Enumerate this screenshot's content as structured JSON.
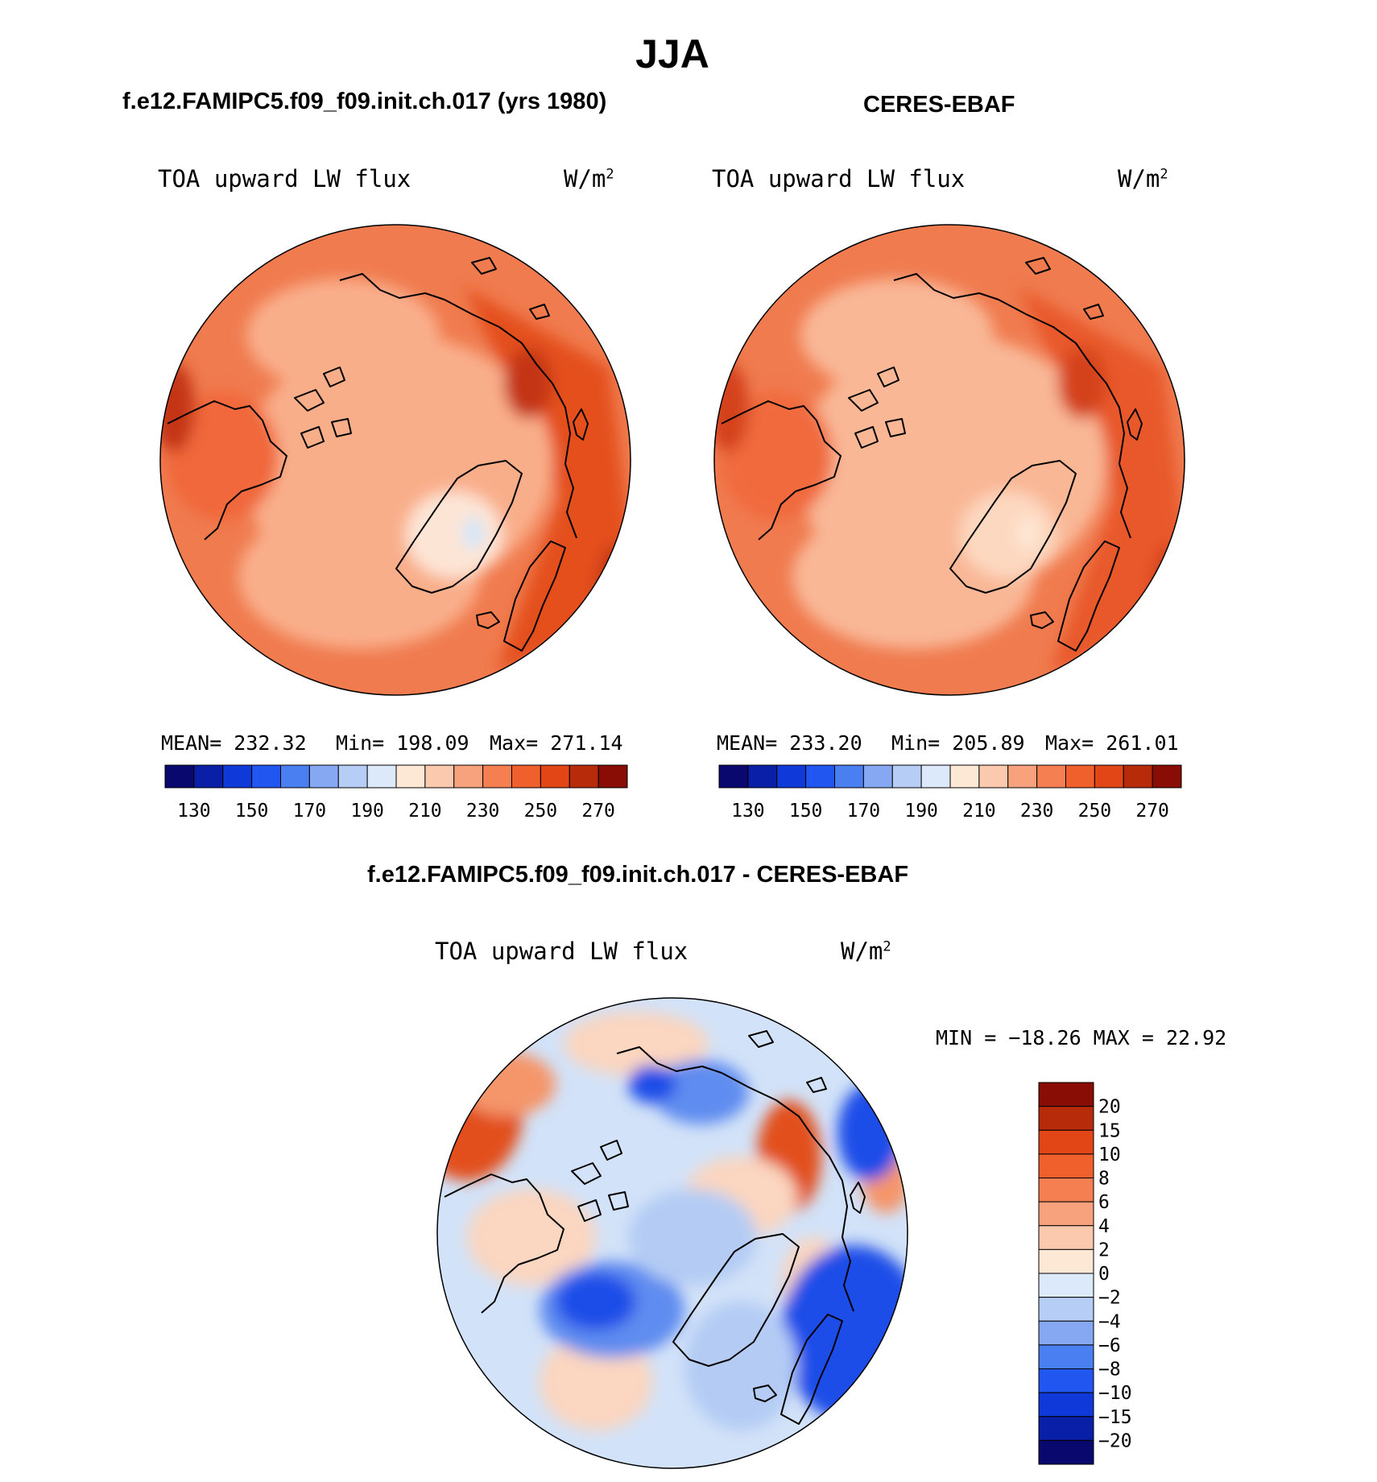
{
  "figure": {
    "season": "JJA",
    "left_title": "f.e12.FAMIPC5.f09_f09.init.ch.017 (yrs 1980)",
    "right_title": "CERES-EBAF",
    "diff_title": "f.e12.FAMIPC5.f09_f09.init.ch.017 - CERES-EBAF"
  },
  "panels": {
    "model": {
      "variable": "TOA upward LW flux",
      "units_base": "W/m",
      "units_exp": "2",
      "mean_text": "MEAN= 232.32",
      "min_text": "Min= 198.09",
      "max_text": "Max= 271.14"
    },
    "obs": {
      "variable": "TOA upward LW flux",
      "units_base": "W/m",
      "units_exp": "2",
      "mean_text": "MEAN= 233.20",
      "min_text": "Min= 205.89",
      "max_text": "Max= 261.01"
    },
    "diff": {
      "variable": "TOA upward LW flux",
      "units_base": "W/m",
      "units_exp": "2",
      "minmax_text": "MIN = −18.26 MAX =   22.92"
    }
  },
  "chart_data": [
    {
      "type": "heatmap",
      "projection": "north polar stereographic",
      "title": "f.e12.FAMIPC5.f09_f09.init.ch.017 (yrs 1980)",
      "variable": "TOA upward LW flux",
      "units": "W/m2",
      "mean": 232.32,
      "min": 198.09,
      "max": 271.14,
      "colorbar_ticks": [
        "130",
        "150",
        "170",
        "190",
        "210",
        "230",
        "250",
        "270"
      ],
      "colorbar_colors": [
        "#08086e",
        "#0a1fa8",
        "#0f39d8",
        "#2256f0",
        "#4a7ff2",
        "#86a8f2",
        "#b6cdf6",
        "#dce9fb",
        "#fde8d6",
        "#fbc9ad",
        "#f7a27d",
        "#f57f51",
        "#f0602c",
        "#e24516",
        "#b72b0b",
        "#8a0d05"
      ],
      "field_colors": {
        "ocean_mid": "#f07b4f",
        "ocean_high": "#e4501f",
        "arctic": "#f9ae8a",
        "greenland": "#fde5d6",
        "greenland_peak": "#d4e6f8",
        "land_warm": "#f0683a",
        "hot_spots": "#c43512"
      }
    },
    {
      "type": "heatmap",
      "projection": "north polar stereographic",
      "title": "CERES-EBAF",
      "variable": "TOA upward LW flux",
      "units": "W/m2",
      "mean": 233.2,
      "min": 205.89,
      "max": 261.01,
      "colorbar_ticks": [
        "130",
        "150",
        "170",
        "190",
        "210",
        "230",
        "250",
        "270"
      ],
      "colorbar_colors": [
        "#08086e",
        "#0a1fa8",
        "#0f39d8",
        "#2256f0",
        "#4a7ff2",
        "#86a8f2",
        "#b6cdf6",
        "#dce9fb",
        "#fde8d6",
        "#fbc9ad",
        "#f7a27d",
        "#f57f51",
        "#f0602c",
        "#e24516",
        "#b72b0b",
        "#8a0d05"
      ],
      "field_colors": {
        "ocean_mid": "#f07b4f",
        "ocean_high": "#e8592a",
        "arctic": "#f9b796",
        "greenland": "#fdd8c0",
        "greenland_peak": "#fde8d6",
        "land_warm": "#f06a3c",
        "hot_spots": "#d4431a"
      }
    },
    {
      "type": "heatmap",
      "projection": "north polar stereographic",
      "title": "f.e12.FAMIPC5.f09_f09.init.ch.017 - CERES-EBAF",
      "variable": "TOA upward LW flux",
      "units": "W/m2",
      "min": -18.26,
      "max": 22.92,
      "colorbar_labels": [
        "20",
        "15",
        "10",
        "8",
        "6",
        "4",
        "2",
        "0",
        "−2",
        "−4",
        "−6",
        "−8",
        "−10",
        "−15",
        "−20"
      ],
      "colorbar_colors": [
        "#8a0d05",
        "#b72b0b",
        "#e24516",
        "#f0602c",
        "#f57f51",
        "#f7a27d",
        "#fbc9ad",
        "#fde8d6",
        "#dce9fb",
        "#b6cdf6",
        "#86a8f2",
        "#4a7ff2",
        "#2256f0",
        "#0f39d8",
        "#0a1fa8",
        "#08086e"
      ],
      "field_colors": {
        "background": "#d2e2f8",
        "pos_weak": "#fbd6c0",
        "pos_mid": "#f5956a",
        "pos_strong": "#e2501f",
        "neg_weak": "#b4ccf4",
        "neg_mid": "#5f8cf0",
        "neg_strong": "#1d4de8"
      }
    }
  ]
}
